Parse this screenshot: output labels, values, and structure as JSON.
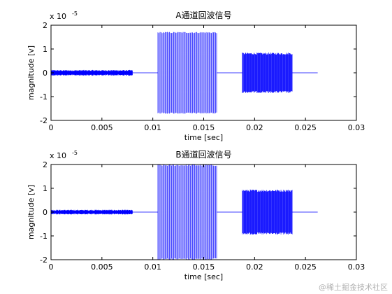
{
  "chart_data": [
    {
      "type": "line",
      "title": "A通道回波信号",
      "xlabel": "time [sec]",
      "ylabel": "magnitude [v]",
      "xlim": [
        0,
        0.03
      ],
      "ylim": [
        -2,
        2
      ],
      "y_exponent_label": "x 10",
      "y_exponent_power": "-5",
      "xticks": [
        "0",
        "0.005",
        "0.01",
        "0.015",
        "0.02",
        "0.025",
        "0.03"
      ],
      "yticks": [
        "2",
        "1",
        "0",
        "-1",
        "-2"
      ],
      "grid": false,
      "color": "#0000ff",
      "series": [
        {
          "segments": [
            {
              "x": [
                0.0,
                0.008
              ],
              "amplitude": 0.12,
              "style": "noise"
            },
            {
              "x": [
                0.008,
                0.0105
              ],
              "amplitude": 0.0,
              "style": "flat"
            },
            {
              "x": [
                0.0105,
                0.0163
              ],
              "amplitude": 1.72,
              "style": "bursts"
            },
            {
              "x": [
                0.0163,
                0.0188
              ],
              "amplitude": 0.0,
              "style": "flat"
            },
            {
              "x": [
                0.0188,
                0.0237
              ],
              "amplitude": 0.85,
              "style": "dense"
            },
            {
              "x": [
                0.0237,
                0.0262
              ],
              "amplitude": 0.0,
              "style": "flat"
            }
          ]
        }
      ]
    },
    {
      "type": "line",
      "title": "B通道回波信号",
      "xlabel": "time [sec]",
      "ylabel": "magnitude [v]",
      "xlim": [
        0,
        0.03
      ],
      "ylim": [
        -2,
        2
      ],
      "y_exponent_label": "x 10",
      "y_exponent_power": "-5",
      "xticks": [
        "0",
        "0.005",
        "0.01",
        "0.015",
        "0.02",
        "0.025",
        "0.03"
      ],
      "yticks": [
        "2",
        "1",
        "0",
        "-1",
        "-2"
      ],
      "grid": false,
      "color": "#0000ff",
      "series": [
        {
          "segments": [
            {
              "x": [
                0.0,
                0.008
              ],
              "amplitude": 0.1,
              "style": "noise"
            },
            {
              "x": [
                0.008,
                0.0105
              ],
              "amplitude": 0.0,
              "style": "flat"
            },
            {
              "x": [
                0.0105,
                0.0163
              ],
              "amplitude": 2.0,
              "style": "bursts"
            },
            {
              "x": [
                0.0163,
                0.0188
              ],
              "amplitude": 0.0,
              "style": "flat"
            },
            {
              "x": [
                0.0188,
                0.0237
              ],
              "amplitude": 0.95,
              "style": "dense"
            },
            {
              "x": [
                0.0237,
                0.0262
              ],
              "amplitude": 0.0,
              "style": "flat"
            }
          ]
        }
      ]
    }
  ],
  "watermark": "@稀土掘金技术社区"
}
